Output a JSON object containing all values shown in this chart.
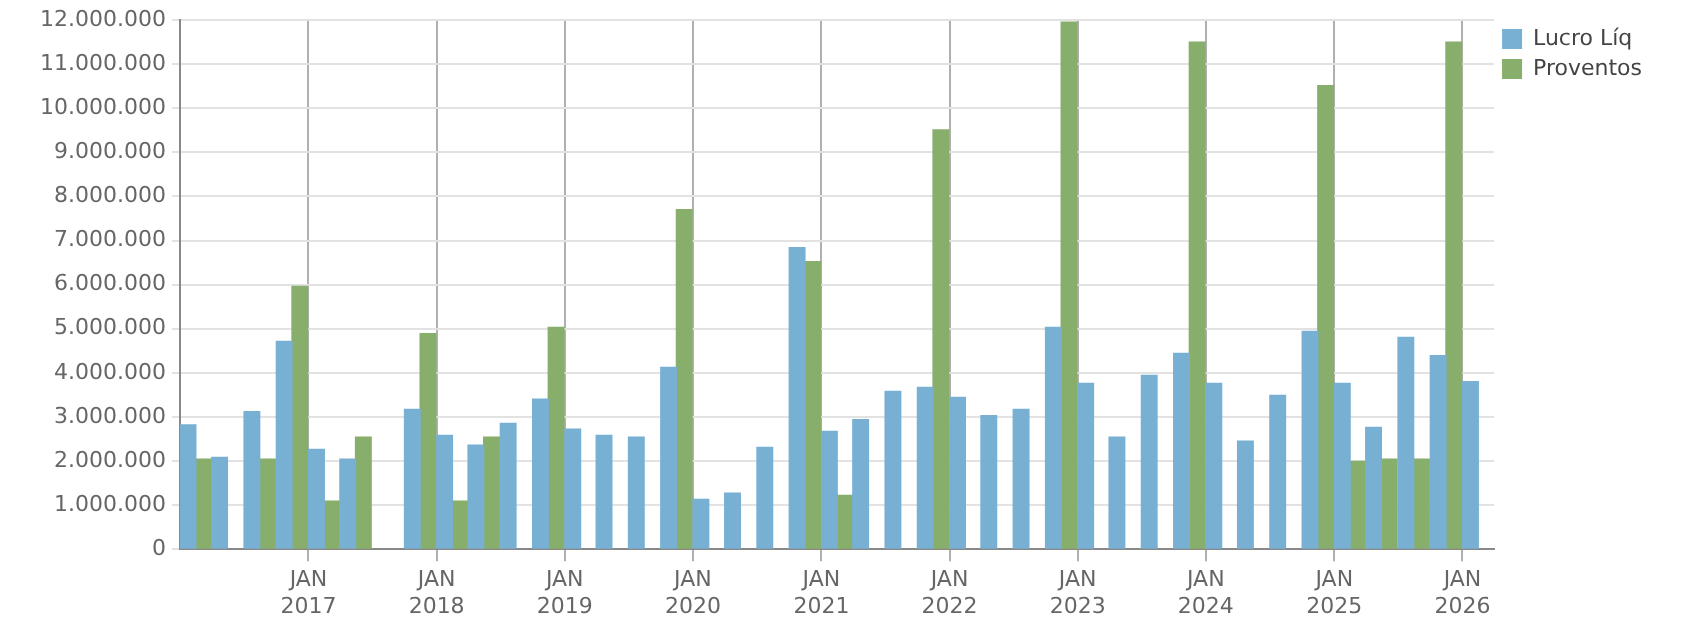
{
  "chart_data": {
    "type": "bar",
    "x": [
      "2016-02-15",
      "2016-05-15",
      "2016-08-15",
      "2016-11-15",
      "2017-02-15",
      "2017-05-15",
      "2017-08-15",
      "2017-11-15",
      "2018-02-15",
      "2018-05-15",
      "2018-08-15",
      "2018-11-15",
      "2019-02-15",
      "2019-05-15",
      "2019-08-15",
      "2019-11-15",
      "2020-02-15",
      "2020-05-15",
      "2020-08-15",
      "2020-11-15",
      "2021-02-15",
      "2021-05-15",
      "2021-08-15",
      "2021-11-15",
      "2022-02-15",
      "2022-05-15",
      "2022-08-15",
      "2022-11-15",
      "2023-02-15",
      "2023-05-15",
      "2023-08-15",
      "2023-11-15",
      "2024-02-15",
      "2024-05-15",
      "2024-08-15",
      "2024-11-15",
      "2025-02-15",
      "2025-05-15",
      "2025-08-15",
      "2025-11-15",
      "2026-02-15"
    ],
    "series": [
      {
        "name": "Lucro Líq",
        "color": "#77b0d3",
        "values": [
          2820000,
          2080000,
          3120000,
          4710000,
          2260000,
          2040000,
          null,
          3170000,
          2580000,
          2360000,
          2850000,
          3400000,
          2720000,
          2580000,
          2540000,
          4120000,
          1130000,
          1270000,
          2310000,
          6840000,
          2670000,
          2940000,
          3580000,
          3670000,
          3440000,
          3030000,
          3170000,
          5030000,
          3760000,
          2540000,
          3940000,
          4440000,
          3760000,
          2450000,
          3490000,
          4940000,
          3760000,
          2760000,
          4800000,
          4390000,
          3800000
        ]
      },
      {
        "name": "Proventos",
        "color": "#87ae6a",
        "values": [
          2040000,
          null,
          2040000,
          5960000,
          1090000,
          2540000,
          null,
          4890000,
          1090000,
          2540000,
          null,
          5030000,
          null,
          null,
          null,
          7700000,
          null,
          null,
          null,
          6520000,
          1220000,
          null,
          null,
          9510000,
          null,
          null,
          null,
          11950000,
          null,
          null,
          null,
          11500000,
          null,
          null,
          null,
          10510000,
          1990000,
          2040000,
          2040000,
          11500000,
          null
        ]
      }
    ],
    "xlim": [
      "2016-01-01",
      "2026-04-01"
    ],
    "xticks": [
      {
        "value": "2017-01-01",
        "label": "JAN 2017"
      },
      {
        "value": "2018-01-01",
        "label": "JAN 2018"
      },
      {
        "value": "2019-01-01",
        "label": "JAN 2019"
      },
      {
        "value": "2020-01-01",
        "label": "JAN 2020"
      },
      {
        "value": "2021-01-01",
        "label": "JAN 2021"
      },
      {
        "value": "2022-01-01",
        "label": "JAN 2022"
      },
      {
        "value": "2023-01-01",
        "label": "JAN 2023"
      },
      {
        "value": "2024-01-01",
        "label": "JAN 2024"
      },
      {
        "value": "2025-01-01",
        "label": "JAN 2025"
      },
      {
        "value": "2026-01-01",
        "label": "JAN 2026"
      }
    ],
    "ylim": [
      0,
      12000000
    ],
    "yticks": [
      {
        "value": 0,
        "label": "0"
      },
      {
        "value": 1000000,
        "label": "1.000.000"
      },
      {
        "value": 2000000,
        "label": "2.000.000"
      },
      {
        "value": 3000000,
        "label": "3.000.000"
      },
      {
        "value": 4000000,
        "label": "4.000.000"
      },
      {
        "value": 5000000,
        "label": "5.000.000"
      },
      {
        "value": 6000000,
        "label": "6.000.000"
      },
      {
        "value": 7000000,
        "label": "7.000.000"
      },
      {
        "value": 8000000,
        "label": "8.000.000"
      },
      {
        "value": 9000000,
        "label": "9.000.000"
      },
      {
        "value": 10000000,
        "label": "10.000.000"
      },
      {
        "value": 11000000,
        "label": "11.000.000"
      },
      {
        "value": 12000000,
        "label": "12.000.000"
      }
    ],
    "grid": true,
    "legend": "top right"
  }
}
